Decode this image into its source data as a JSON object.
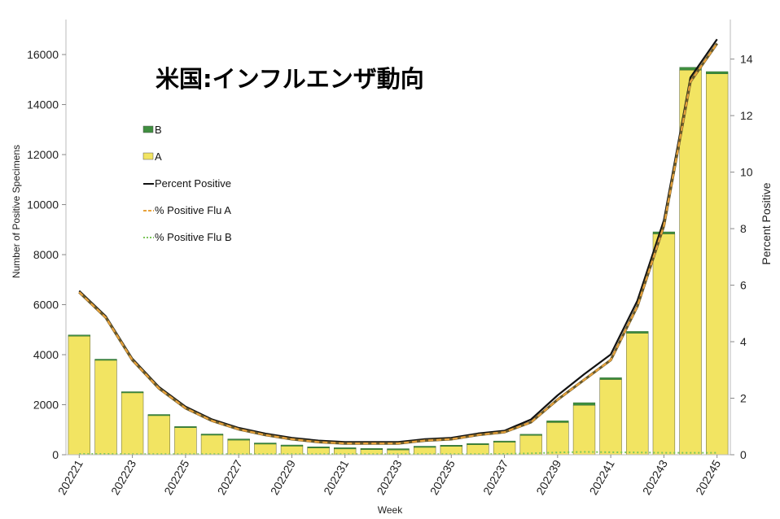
{
  "chart_data": {
    "type": "bar",
    "title": "米国:インフルエンザ動向",
    "xlabel": "Week",
    "ylabel_left": "Number of Positive Specimens",
    "ylabel_right": "Percent Positive",
    "ylim_left": [
      0,
      17400
    ],
    "ylim_right": [
      0,
      15.4
    ],
    "yticks_left": [
      0,
      2000,
      4000,
      6000,
      8000,
      10000,
      12000,
      14000,
      16000
    ],
    "yticks_right": [
      0,
      2,
      4,
      6,
      8,
      10,
      12,
      14
    ],
    "categories": [
      "202221",
      "202222",
      "202223",
      "202224",
      "202225",
      "202226",
      "202227",
      "202228",
      "202229",
      "202230",
      "202231",
      "202232",
      "202233",
      "202234",
      "202235",
      "202236",
      "202237",
      "202238",
      "202239",
      "202240",
      "202241",
      "202242",
      "202243",
      "202244",
      "202245"
    ],
    "tick_labels": [
      "202221",
      "202223",
      "202225",
      "202227",
      "202229",
      "202231",
      "202233",
      "202235",
      "202237",
      "202239",
      "202241",
      "202243",
      "202245"
    ],
    "bar_series": [
      {
        "name": "A",
        "color": "#f2e462",
        "values": [
          4750,
          3790,
          2500,
          1590,
          1110,
          810,
          620,
          460,
          380,
          310,
          270,
          240,
          230,
          330,
          370,
          440,
          530,
          780,
          1290,
          1980,
          3010,
          4860,
          8830,
          15380,
          15230
        ]
      },
      {
        "name": "B",
        "color": "#3f8f3f",
        "values": [
          40,
          30,
          20,
          20,
          20,
          20,
          10,
          10,
          10,
          10,
          10,
          10,
          10,
          10,
          10,
          10,
          20,
          40,
          70,
          100,
          70,
          70,
          80,
          110,
          90
        ]
      }
    ],
    "line_series": [
      {
        "name": "Percent Positive",
        "axis": "right",
        "color": "#111111",
        "style": "solid",
        "values": [
          5.8,
          4.9,
          3.4,
          2.4,
          1.7,
          1.25,
          0.95,
          0.75,
          0.6,
          0.5,
          0.45,
          0.45,
          0.45,
          0.55,
          0.6,
          0.75,
          0.85,
          1.25,
          2.1,
          2.85,
          3.55,
          5.45,
          8.3,
          13.35,
          14.7
        ]
      },
      {
        "name": "% Positive Flu A",
        "axis": "right",
        "color": "#e8a23c",
        "style": "dashed",
        "values": [
          5.75,
          4.85,
          3.35,
          2.35,
          1.65,
          1.2,
          0.9,
          0.7,
          0.55,
          0.45,
          0.4,
          0.4,
          0.4,
          0.5,
          0.55,
          0.7,
          0.8,
          1.15,
          1.95,
          2.65,
          3.35,
          5.25,
          8.1,
          13.2,
          14.55
        ]
      },
      {
        "name": "% Positive Flu B",
        "axis": "right",
        "color": "#7cc65a",
        "style": "dotted",
        "values": [
          0.03,
          0.03,
          0.02,
          0.02,
          0.02,
          0.02,
          0.02,
          0.02,
          0.02,
          0.02,
          0.02,
          0.02,
          0.02,
          0.02,
          0.02,
          0.02,
          0.03,
          0.05,
          0.08,
          0.1,
          0.09,
          0.08,
          0.07,
          0.07,
          0.07
        ]
      }
    ],
    "legend": [
      {
        "name": "B",
        "kind": "swatch",
        "color": "#3f8f3f"
      },
      {
        "name": "A",
        "kind": "swatch",
        "color": "#f2e462"
      },
      {
        "name": "Percent Positive",
        "kind": "line",
        "color": "#111111",
        "style": "solid"
      },
      {
        "name": "% Positive Flu A",
        "kind": "line",
        "color": "#e8a23c",
        "style": "dashed"
      },
      {
        "name": "% Positive Flu B",
        "kind": "line",
        "color": "#7cc65a",
        "style": "dotted"
      }
    ],
    "legend_position": "upper-left",
    "grid": false
  }
}
